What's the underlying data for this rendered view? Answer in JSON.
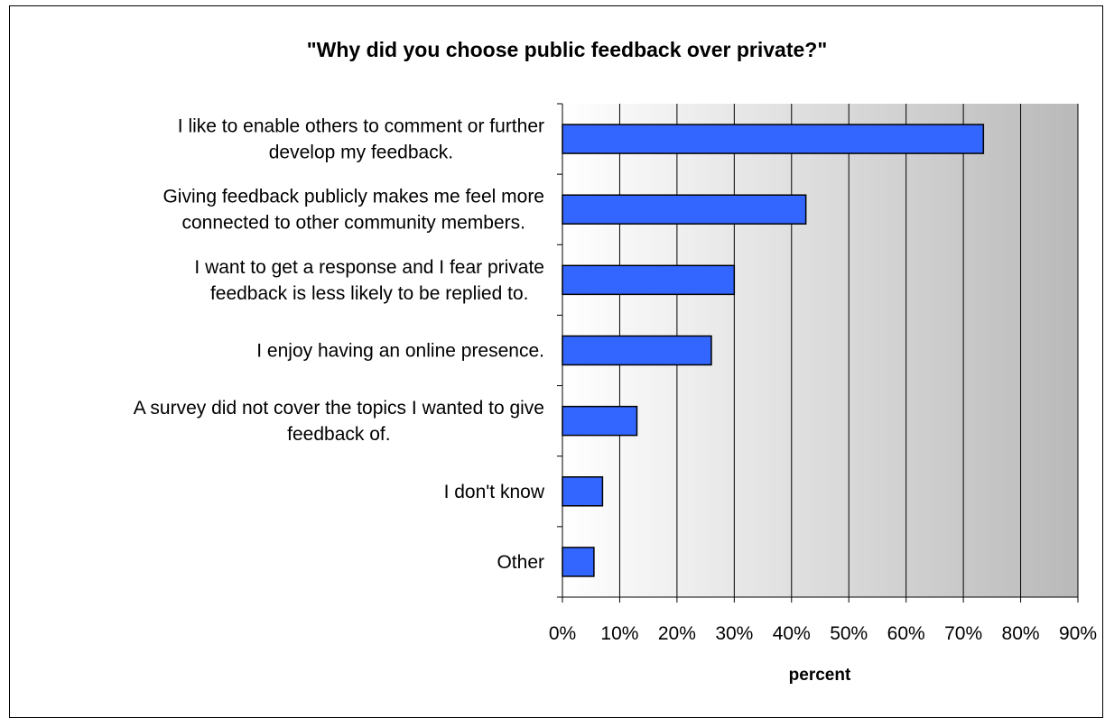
{
  "chart_data": {
    "type": "bar",
    "orientation": "horizontal",
    "title": "\"Why did you choose public feedback over private?\"",
    "xlabel": "percent",
    "ylabel": "",
    "xlim": [
      0,
      90
    ],
    "x_ticks": [
      "0%",
      "10%",
      "20%",
      "30%",
      "40%",
      "50%",
      "60%",
      "70%",
      "80%",
      "90%"
    ],
    "grid": "vertical",
    "categories": [
      [
        "I like to enable others to comment or further",
        "develop my feedback."
      ],
      [
        "Giving feedback publicly makes me feel more",
        "connected to other community members."
      ],
      [
        "I want to get a response and I fear private",
        "feedback is less likely to be replied to."
      ],
      [
        "I enjoy having an online presence."
      ],
      [
        "A survey did not cover the topics I wanted to give",
        "feedback of."
      ],
      [
        "I don't know"
      ],
      [
        "Other"
      ]
    ],
    "values": [
      73.5,
      42.5,
      30,
      26,
      13,
      7,
      5.5
    ],
    "bar_color": "#3366ff"
  }
}
